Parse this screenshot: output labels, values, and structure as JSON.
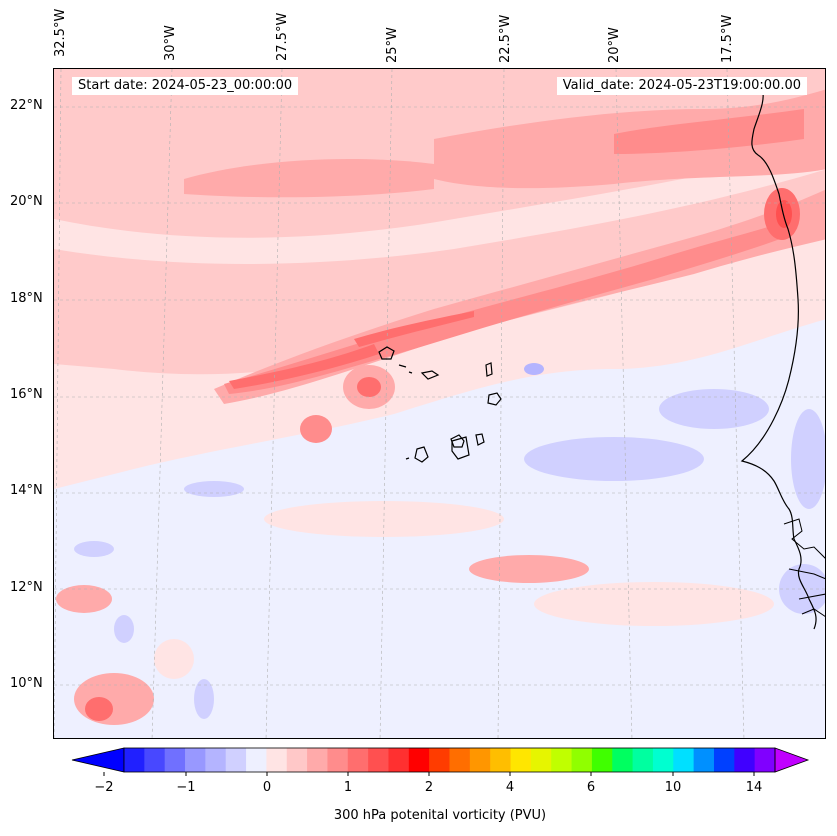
{
  "header": {
    "start_date": "Start date: 2024-05-23_00:00:00",
    "valid_date": "Valid_date: 2024-05-23T19:00:00.00"
  },
  "axes": {
    "longitude_labels": [
      "32.5°W",
      "30°W",
      "27.5°W",
      "25°W",
      "22.5°W",
      "20°W",
      "17.5°W"
    ],
    "latitude_labels": [
      "22°N",
      "20°N",
      "18°N",
      "16°N",
      "14°N",
      "12°N",
      "10°N"
    ]
  },
  "colorbar": {
    "label": "300 hPa potenital vorticity (PVU)",
    "tick_labels": [
      "−2",
      "−1",
      "0",
      "1",
      "2",
      "4",
      "6",
      "10",
      "14"
    ],
    "colors": [
      "#0000ff",
      "#2020ff",
      "#4848ff",
      "#7070ff",
      "#9898ff",
      "#b4b4ff",
      "#d0d0ff",
      "#eef0ff",
      "#ffe4e4",
      "#ffc8c8",
      "#ffaaaa",
      "#ff8c8c",
      "#ff6e6e",
      "#ff5050",
      "#ff3030",
      "#ff0000",
      "#ff3c00",
      "#ff6e00",
      "#ff9600",
      "#ffbe00",
      "#ffe600",
      "#e6f500",
      "#c0ff00",
      "#90ff00",
      "#40ff00",
      "#00ff60",
      "#00ffa0",
      "#00ffd0",
      "#00e0ff",
      "#0090ff",
      "#0040ff",
      "#4000ff",
      "#8000ff",
      "#c000ff"
    ]
  },
  "map": {
    "palette": {
      "background": "#eef0ff",
      "light_pink": "#ffe4e4",
      "pink": "#ffcaca",
      "salmon": "#ffaaaa",
      "red_light": "#ff8c8c",
      "red": "#ff6e6e",
      "blue_light": "#d0d0ff",
      "blue": "#b4b4ff",
      "coast": "#000000"
    }
  }
}
